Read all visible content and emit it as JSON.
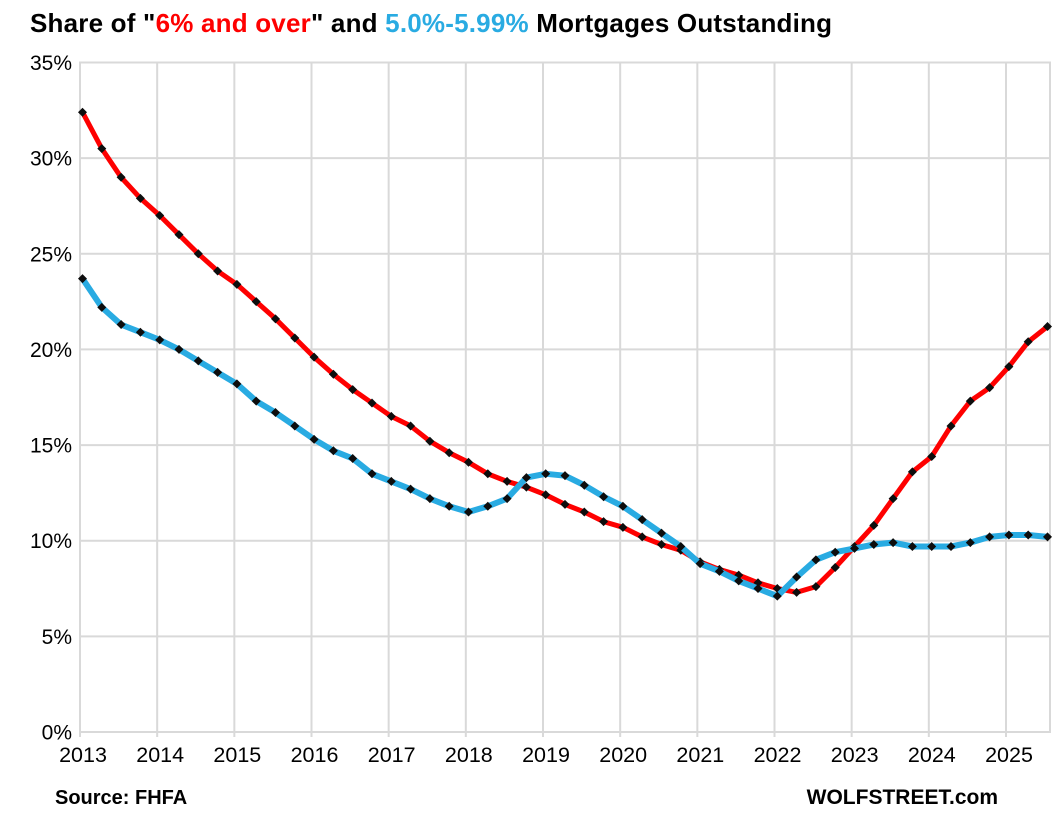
{
  "title": {
    "prefix": "Share of \"",
    "red_text": "6% and over",
    "mid": "\" and ",
    "blue_text": "5.0%-5.99%",
    "suffix": " Mortgages Outstanding"
  },
  "footer": {
    "source": "Source: FHFA",
    "branding": "WOLFSTREET.com"
  },
  "colors": {
    "red": "#fe0000",
    "blue": "#29abe2",
    "grid": "#d9d9d9",
    "marker": "#0d0d0d",
    "text": "#000000"
  },
  "chart_data": {
    "type": "line",
    "title": "Share of \"6% and over\" and 5.0%-5.99% Mortgages Outstanding",
    "frequency": "quarterly",
    "x_start": "2013 Q1",
    "x_end": "2025 Q3",
    "x_year_labels": [
      "2013",
      "2014",
      "2015",
      "2016",
      "2017",
      "2018",
      "2019",
      "2020",
      "2021",
      "2022",
      "2023",
      "2024",
      "2025"
    ],
    "ylim": [
      0,
      35
    ],
    "y_ticks": [
      {
        "label": "35%",
        "value": 35
      },
      {
        "label": "30%",
        "value": 30
      },
      {
        "label": "25%",
        "value": 25
      },
      {
        "label": "20%",
        "value": 20
      },
      {
        "label": "15%",
        "value": 15
      },
      {
        "label": "10%",
        "value": 10
      },
      {
        "label": "5%",
        "value": 5
      },
      {
        "label": "0%",
        "value": 0
      }
    ],
    "grid": true,
    "legend_position": "in-title",
    "marker": "black-diamond",
    "source": "FHFA",
    "series": [
      {
        "name": "6% and over",
        "color": "#fe0000",
        "values": [
          32.4,
          30.5,
          29.0,
          27.9,
          27.0,
          26.0,
          25.0,
          24.1,
          23.4,
          22.5,
          21.6,
          20.6,
          19.6,
          18.7,
          17.9,
          17.2,
          16.5,
          16.0,
          15.2,
          14.6,
          14.1,
          13.5,
          13.1,
          12.8,
          12.4,
          11.9,
          11.5,
          11.0,
          10.7,
          10.2,
          9.8,
          9.5,
          8.9,
          8.5,
          8.2,
          7.8,
          7.5,
          7.3,
          7.6,
          8.6,
          9.7,
          10.8,
          12.2,
          13.6,
          14.4,
          16.0,
          17.3,
          18.0,
          19.1,
          20.4,
          21.2
        ]
      },
      {
        "name": "5.0%-5.99%",
        "color": "#29abe2",
        "values": [
          23.7,
          22.2,
          21.3,
          20.9,
          20.5,
          20.0,
          19.4,
          18.8,
          18.2,
          17.3,
          16.7,
          16.0,
          15.3,
          14.7,
          14.3,
          13.5,
          13.1,
          12.7,
          12.2,
          11.8,
          11.5,
          11.8,
          12.2,
          13.3,
          13.5,
          13.4,
          12.9,
          12.3,
          11.8,
          11.1,
          10.4,
          9.7,
          8.8,
          8.4,
          7.9,
          7.5,
          7.1,
          8.1,
          9.0,
          9.4,
          9.6,
          9.8,
          9.9,
          9.7,
          9.7,
          9.7,
          9.9,
          10.2,
          10.3,
          10.3,
          10.2
        ]
      }
    ]
  }
}
